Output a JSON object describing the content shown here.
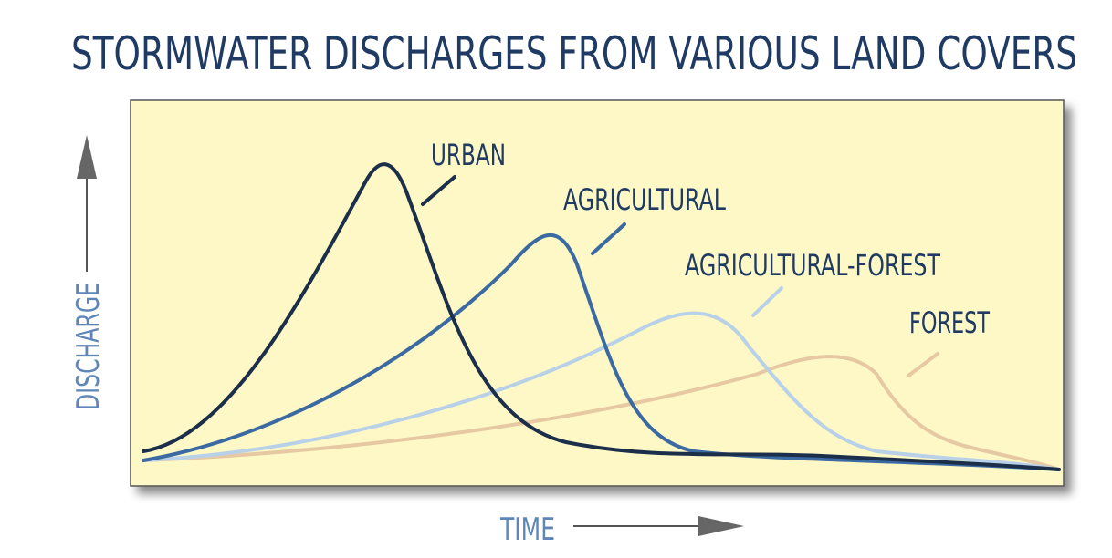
{
  "title": "STORMWATER DISCHARGES FROM VARIOUS LAND COVERS",
  "y_axis_label": "DISCHARGE",
  "x_axis_label": "TIME",
  "curves": [
    {
      "label": "URBAN"
    },
    {
      "label": "AGRICULTURAL"
    },
    {
      "label": "AGRICULTURAL-FOREST"
    },
    {
      "label": "FOREST"
    }
  ]
}
